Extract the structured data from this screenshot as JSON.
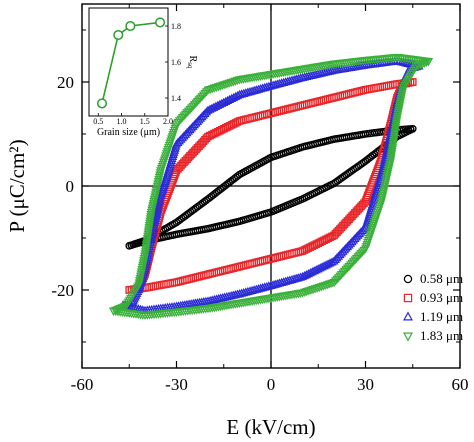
{
  "chart_data": [
    {
      "type": "line",
      "title": "",
      "xlabel": "E (kV/cm)",
      "ylabel": "P (μC/cm²)",
      "xlim": [
        -60,
        60
      ],
      "ylim": [
        -35,
        35
      ],
      "xticks": [
        -60,
        -30,
        0,
        30,
        60
      ],
      "yticks": [
        -20,
        0,
        20
      ],
      "grid": false,
      "zero_lines": true,
      "legend_position": "bottom-right",
      "series": [
        {
          "name": "0.58 μm",
          "marker": "circle",
          "color": "#000000",
          "upper_branch": {
            "E": [
              -45,
              -40,
              -30,
              -20,
              -10,
              0,
              10,
              20,
              30,
              40,
              45
            ],
            "P": [
              -11.5,
              -10.5,
              -7,
              -2.5,
              2.2,
              5.5,
              7.5,
              9,
              10,
              10.8,
              11
            ]
          },
          "lower_branch": {
            "E": [
              45,
              40,
              30,
              20,
              10,
              0,
              -10,
              -20,
              -30,
              -40,
              -45
            ],
            "P": [
              11,
              9.5,
              4.8,
              0.5,
              -2.5,
              -5,
              -6.8,
              -8.2,
              -9.3,
              -10.6,
              -11.5
            ]
          }
        },
        {
          "name": "0.93 μm",
          "marker": "square",
          "color": "#e8262a",
          "upper_branch": {
            "E": [
              -45,
              -42,
              -40,
              -38,
              -35,
              -30,
              -20,
              -10,
              0,
              10,
              20,
              30,
              40,
              45
            ],
            "P": [
              -20,
              -19.7,
              -17,
              -12,
              -5,
              3,
              9.5,
              12.5,
              14,
              15.5,
              17,
              18.5,
              19.6,
              20
            ]
          },
          "lower_branch": {
            "E": [
              45,
              42,
              40,
              38,
              35,
              30,
              20,
              10,
              0,
              -10,
              -20,
              -30,
              -40,
              -45
            ],
            "P": [
              20,
              19.6,
              17,
              12,
              5,
              -3,
              -9.5,
              -12.5,
              -14,
              -15.5,
              -17,
              -18.5,
              -19.6,
              -20
            ]
          }
        },
        {
          "name": "1.19 μm",
          "marker": "triangle-up",
          "color": "#2b2bd6",
          "upper_branch": {
            "E": [
              -47,
              -44,
              -42,
              -40,
              -38,
              -35,
              -30,
              -20,
              -10,
              0,
              10,
              20,
              30,
              40,
              47
            ],
            "P": [
              -23,
              -22.5,
              -20,
              -16,
              -10,
              -2,
              8,
              14.5,
              17.5,
              19.2,
              20.8,
              22.2,
              23.2,
              24,
              23
            ]
          },
          "lower_branch": {
            "E": [
              47,
              44,
              42,
              40,
              38,
              35,
              30,
              20,
              10,
              0,
              -10,
              -20,
              -30,
              -40,
              -47
            ],
            "P": [
              23,
              22.5,
              20,
              16,
              10,
              2,
              -8,
              -14.5,
              -17.5,
              -19.2,
              -20.8,
              -22.2,
              -23.2,
              -24,
              -23
            ]
          }
        },
        {
          "name": "1.83 μm",
          "marker": "triangle-down",
          "color": "#3ab03a",
          "upper_branch": {
            "E": [
              -50,
              -46,
              -42,
              -40,
              -38,
              -35,
              -30,
              -20,
              -10,
              0,
              10,
              20,
              30,
              40,
              50
            ],
            "P": [
              -24,
              -23,
              -19,
              -13,
              -5,
              3,
              12,
              18.5,
              20.5,
              21.5,
              22.5,
              23.5,
              24.2,
              24.8,
              24
            ]
          },
          "lower_branch": {
            "E": [
              50,
              46,
              42,
              40,
              38,
              35,
              30,
              20,
              10,
              0,
              -10,
              -20,
              -30,
              -40,
              -50
            ],
            "P": [
              24,
              23,
              19,
              13,
              5,
              -3,
              -12,
              -18.5,
              -20.5,
              -21.5,
              -22.5,
              -23.5,
              -24.2,
              -24.8,
              -24
            ]
          }
        }
      ]
    },
    {
      "type": "line",
      "title": "",
      "xlabel": "Grain size (μm)",
      "ylabel": "Rsq",
      "xlim": [
        0.3,
        2.0
      ],
      "ylim": [
        1.3,
        1.9
      ],
      "xticks": [
        0.5,
        1.0,
        1.5,
        2.0
      ],
      "yticks": [
        1.4,
        1.6,
        1.8
      ],
      "ytick_side": "right",
      "series": [
        {
          "name": "",
          "marker": "circle",
          "color": "#2ca02c",
          "x": [
            0.58,
            0.93,
            1.19,
            1.83
          ],
          "y": [
            1.37,
            1.75,
            1.8,
            1.82
          ]
        }
      ]
    }
  ]
}
